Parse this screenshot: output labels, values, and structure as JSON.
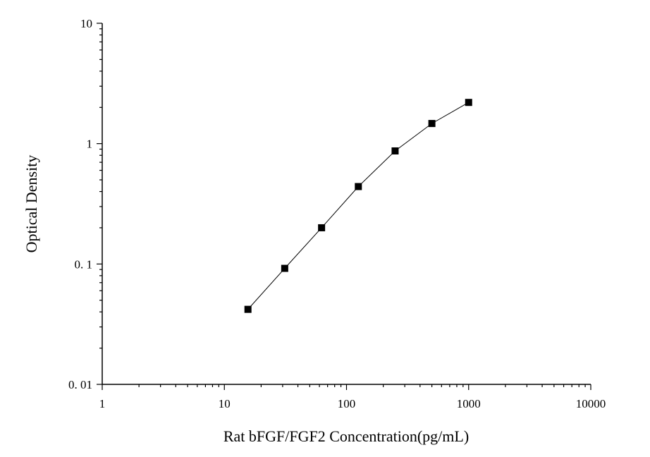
{
  "chart_data": {
    "type": "line",
    "title": "",
    "xlabel": "Rat bFGF/FGF2 Concentration(pg/mL)",
    "ylabel": "Optical Density",
    "x_scale": "log",
    "y_scale": "log",
    "xlim": [
      1,
      10000
    ],
    "ylim": [
      0.01,
      10
    ],
    "x_tick_labels": [
      "1",
      "10",
      "100",
      "1000",
      "10000"
    ],
    "y_tick_labels": [
      "0. 01",
      "0. 1",
      "1",
      "10"
    ],
    "grid": false,
    "legend": "none",
    "series": [
      {
        "marker": "square",
        "x": [
          15.6,
          31.2,
          62.5,
          125,
          250,
          500,
          1000
        ],
        "y": [
          0.042,
          0.092,
          0.2,
          0.44,
          0.87,
          1.47,
          2.2
        ]
      }
    ],
    "colors": {
      "line": "#000000",
      "marker": "#000000",
      "axis": "#000000"
    }
  }
}
